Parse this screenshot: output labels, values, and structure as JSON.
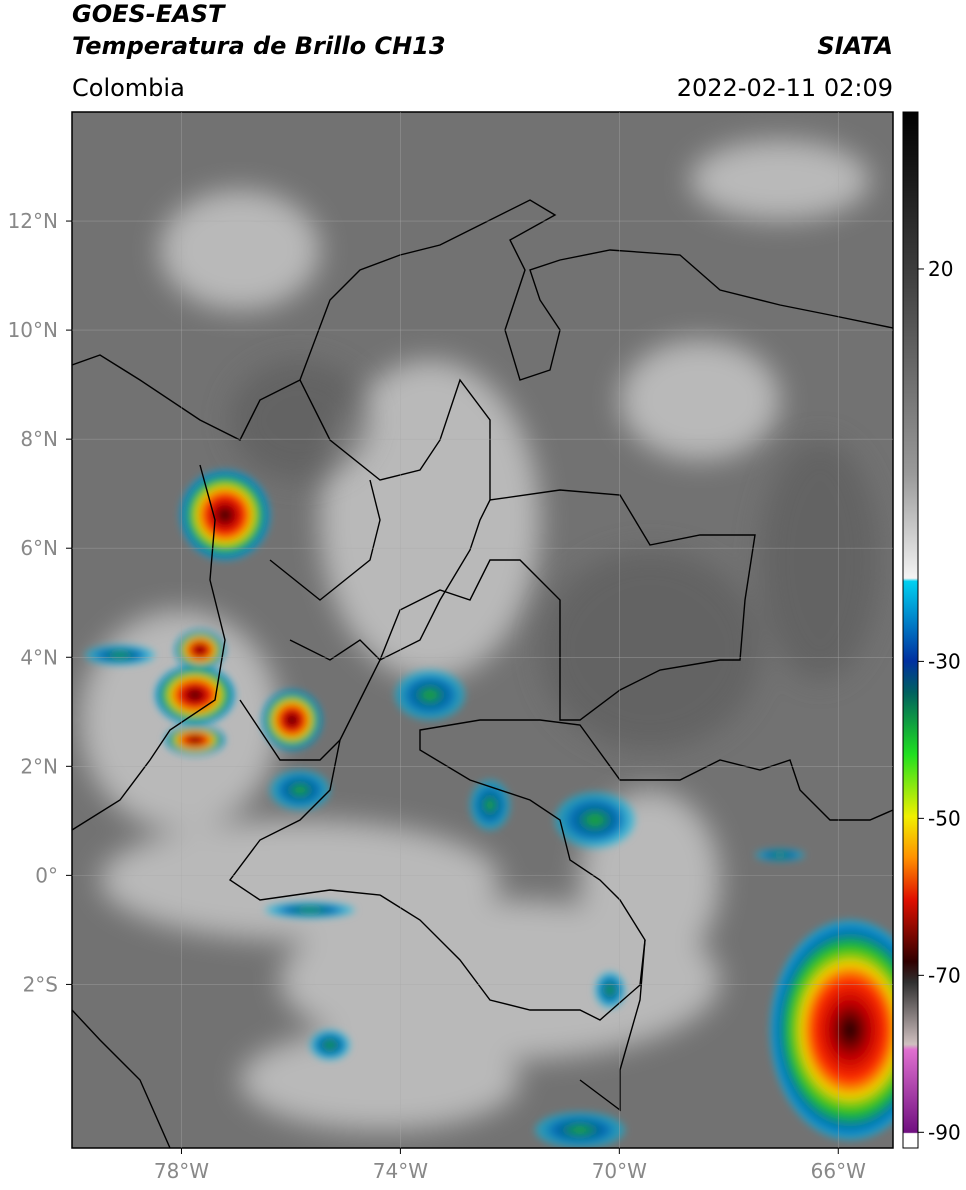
{
  "header": {
    "title": "GOES-EAST",
    "subtitle": "Temperatura de Brillo CH13",
    "region": "Colombia",
    "source": "SIATA",
    "datetime": "2022-02-11 02:09"
  },
  "map": {
    "lonlim": [
      -80,
      -65
    ],
    "latlim": [
      -5,
      14
    ],
    "lon_ticks": [
      {
        "value": -78,
        "label": "78°W"
      },
      {
        "value": -74,
        "label": "74°W"
      },
      {
        "value": -70,
        "label": "70°W"
      },
      {
        "value": -66,
        "label": "66°W"
      }
    ],
    "lat_ticks": [
      {
        "value": 12,
        "label": "12°N"
      },
      {
        "value": 10,
        "label": "10°N"
      },
      {
        "value": 8,
        "label": "8°N"
      },
      {
        "value": 6,
        "label": "6°N"
      },
      {
        "value": 4,
        "label": "4°N"
      },
      {
        "value": 2,
        "label": "2°N"
      },
      {
        "value": 0,
        "label": "0°"
      },
      {
        "value": -2,
        "label": "2°S"
      }
    ]
  },
  "colorbar": {
    "range": [
      -92,
      40
    ],
    "ticks": [
      20,
      -30,
      -50,
      -70,
      -90
    ]
  }
}
